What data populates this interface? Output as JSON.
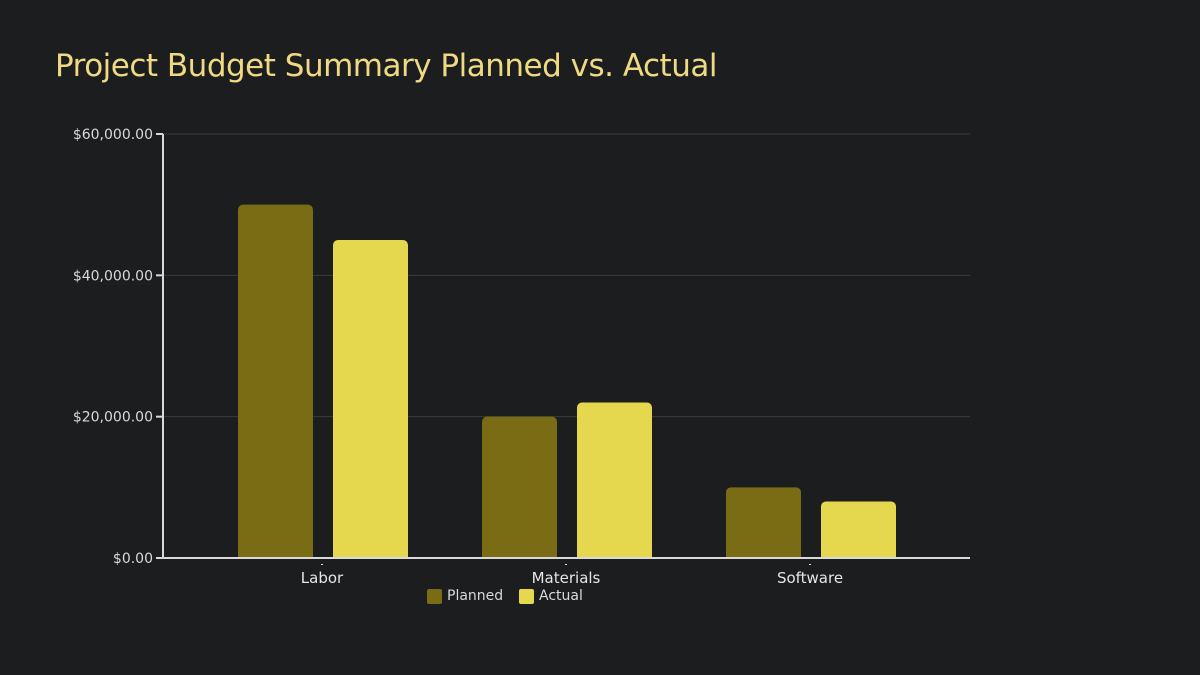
{
  "chart_data": {
    "type": "bar",
    "title": "Project Budget Summary Planned vs. Actual",
    "xlabel": "",
    "ylabel": "",
    "categories": [
      "Labor",
      "Materials",
      "Software"
    ],
    "series": [
      {
        "name": "Planned",
        "values": [
          50000,
          20000,
          10000
        ],
        "color": "#7a6c14"
      },
      {
        "name": "Actual",
        "values": [
          45000,
          22000,
          8000
        ],
        "color": "#e6d84e"
      }
    ],
    "ylim": [
      0,
      60000
    ],
    "yticks": [
      0,
      20000,
      40000,
      60000
    ],
    "ytick_labels": [
      "$0.00",
      "$20,000.00",
      "$40,000.00",
      "$60,000.00"
    ],
    "grid": true,
    "legend_position": "bottom",
    "background": "#1c1d1f",
    "title_color": "#efd983"
  }
}
